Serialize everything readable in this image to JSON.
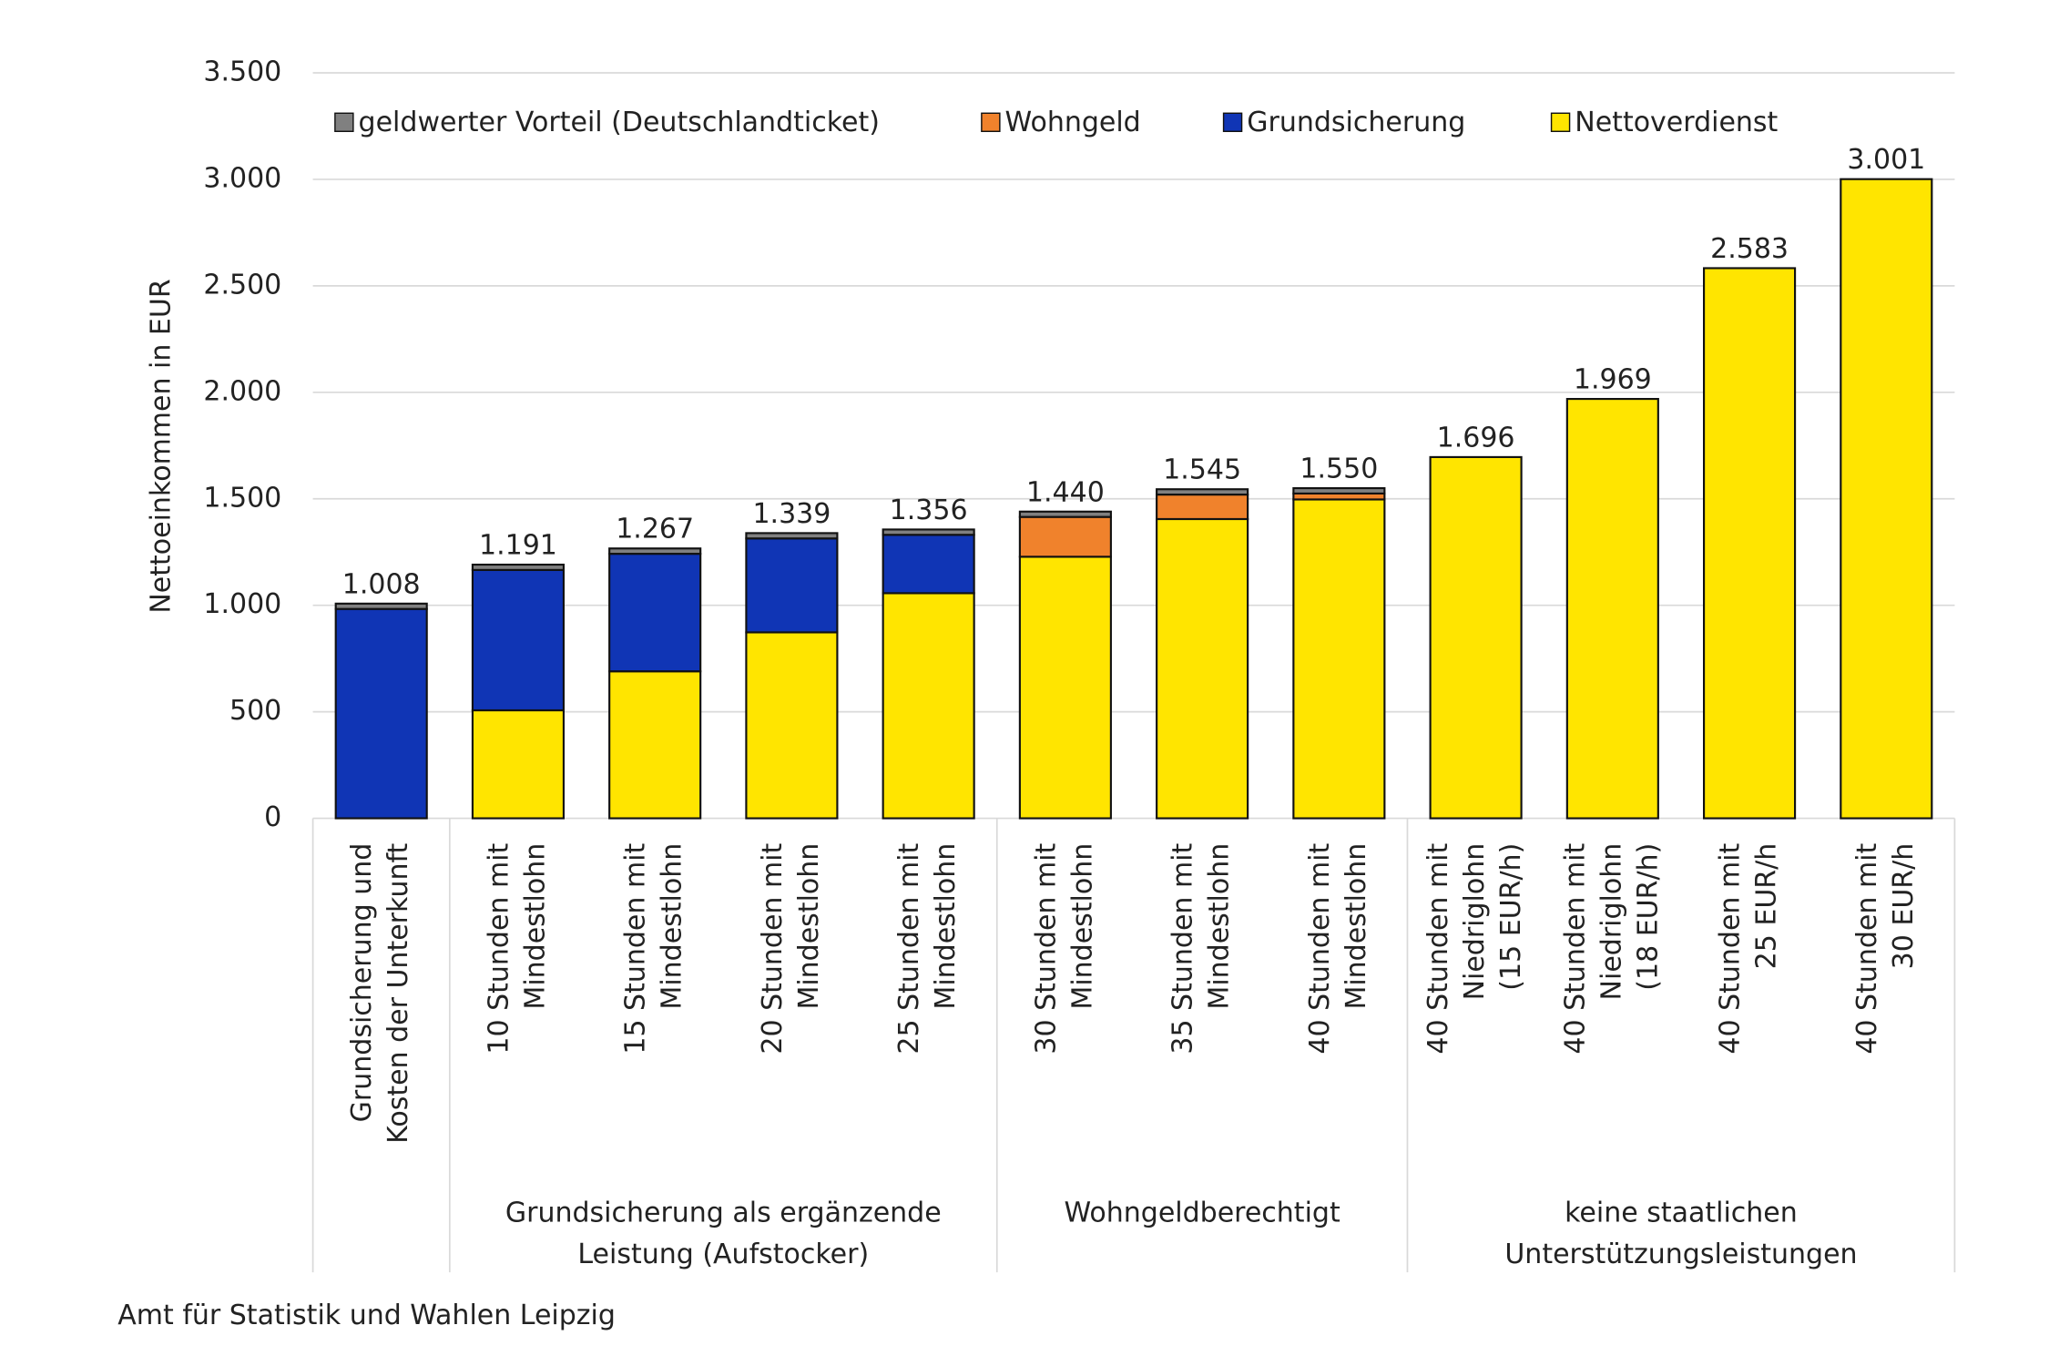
{
  "chart_data": {
    "type": "stacked-bar",
    "y_label": "Nettoeinkommen in EUR",
    "source": "Amt für Statistik und Wahlen Leipzig",
    "categories": [
      [
        "Grundsicherung und",
        "Kosten der Unterkunft"
      ],
      [
        "10 Stunden mit",
        "Mindestlohn"
      ],
      [
        "15 Stunden mit",
        "Mindestlohn"
      ],
      [
        "20 Stunden mit",
        "Mindestlohn"
      ],
      [
        "25 Stunden mit",
        "Mindestlohn"
      ],
      [
        "30 Stunden mit",
        "Mindestlohn"
      ],
      [
        "35 Stunden mit",
        "Mindestlohn"
      ],
      [
        "40 Stunden mit",
        "Mindestlohn"
      ],
      [
        "40 Stunden mit",
        "Niedriglohn",
        "(15 EUR/h)"
      ],
      [
        "40 Stunden mit",
        "Niedriglohn",
        "(18 EUR/h)"
      ],
      [
        "40 Stunden mit",
        "25 EUR/h"
      ],
      [
        "40 Stunden mit",
        "30 EUR/h"
      ]
    ],
    "groups": [
      {
        "label": null,
        "size": 1
      },
      {
        "label": [
          "Grundsicherung als ergänzende",
          "Leistung (Aufstocker)"
        ],
        "size": 4
      },
      {
        "label": [
          "Wohngeldberechtigt"
        ],
        "size": 3
      },
      {
        "label": [
          "keine staatlichen",
          "Unterstützungsleistungen"
        ],
        "size": 4
      }
    ],
    "series": [
      {
        "name": "Nettoverdienst",
        "color": "#ffe500",
        "values": [
          0,
          507,
          690,
          873,
          1057,
          1228,
          1405,
          1497,
          1696,
          1969,
          2583,
          3001
        ]
      },
      {
        "name": "Grundsicherung",
        "color": "#1035b5",
        "values": [
          983,
          659,
          552,
          441,
          274,
          0,
          0,
          0,
          0,
          0,
          0,
          0
        ]
      },
      {
        "name": "Wohngeld",
        "color": "#f0822c",
        "values": [
          0,
          0,
          0,
          0,
          0,
          187,
          115,
          28,
          0,
          0,
          0,
          0
        ]
      },
      {
        "name": "geldwerter Vorteil (Deutschlandticket)",
        "color": "#808080",
        "values": [
          25,
          25,
          25,
          25,
          25,
          25,
          25,
          25,
          0,
          0,
          0,
          0
        ]
      }
    ],
    "totals": {
      "values": [
        1008,
        1191,
        1267,
        1339,
        1356,
        1440,
        1545,
        1550,
        1696,
        1969,
        2583,
        3001
      ],
      "value_labels": [
        "1.008",
        "1.191",
        "1.267",
        "1.339",
        "1.356",
        "1.440",
        "1.545",
        "1.550",
        "1.696",
        "1.969",
        "2.583",
        "3.001"
      ]
    },
    "ylim": [
      0,
      3500
    ],
    "yticks": [
      0,
      500,
      {
        "value": 1000,
        "label": "1.000"
      },
      {
        "value": 1500,
        "label": "1.500"
      },
      {
        "value": 2000,
        "label": "2.000"
      },
      {
        "value": 2500,
        "label": "2.500"
      },
      {
        "value": 3000,
        "label": "3.000"
      },
      {
        "value": 3500,
        "label": "3.500"
      }
    ],
    "grid": true,
    "legend": "top"
  }
}
